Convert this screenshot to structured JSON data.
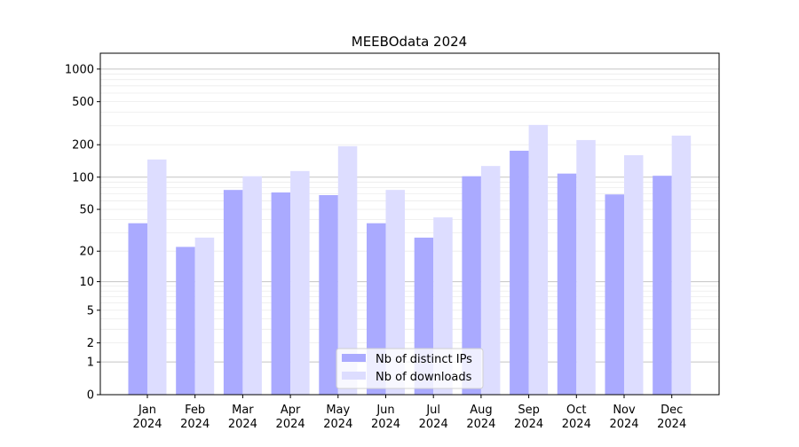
{
  "chart_data": {
    "type": "bar",
    "title": "MEEBOdata 2024",
    "xlabel": "",
    "ylabel": "",
    "yscale": "symlog (log10(1+y))",
    "ylim": [
      0,
      1400
    ],
    "yticks": [
      0,
      1,
      2,
      5,
      10,
      20,
      50,
      100,
      200,
      500,
      1000
    ],
    "grid": true,
    "legend_position": "bottom-center",
    "categories": [
      "Jan\n2024",
      "Feb\n2024",
      "Mar\n2024",
      "Apr\n2024",
      "May\n2024",
      "Jun\n2024",
      "Jul\n2024",
      "Aug\n2024",
      "Sep\n2024",
      "Oct\n2024",
      "Nov\n2024",
      "Dec\n2024"
    ],
    "series": [
      {
        "name": "Nb of distinct IPs",
        "color": "#aaaaff",
        "values": [
          37,
          22,
          76,
          72,
          68,
          37,
          27,
          102,
          176,
          108,
          69,
          103
        ]
      },
      {
        "name": "Nb of downloads",
        "color": "#ddddff",
        "values": [
          146,
          27,
          102,
          114,
          194,
          76,
          42,
          127,
          305,
          221,
          160,
          243
        ]
      }
    ]
  }
}
